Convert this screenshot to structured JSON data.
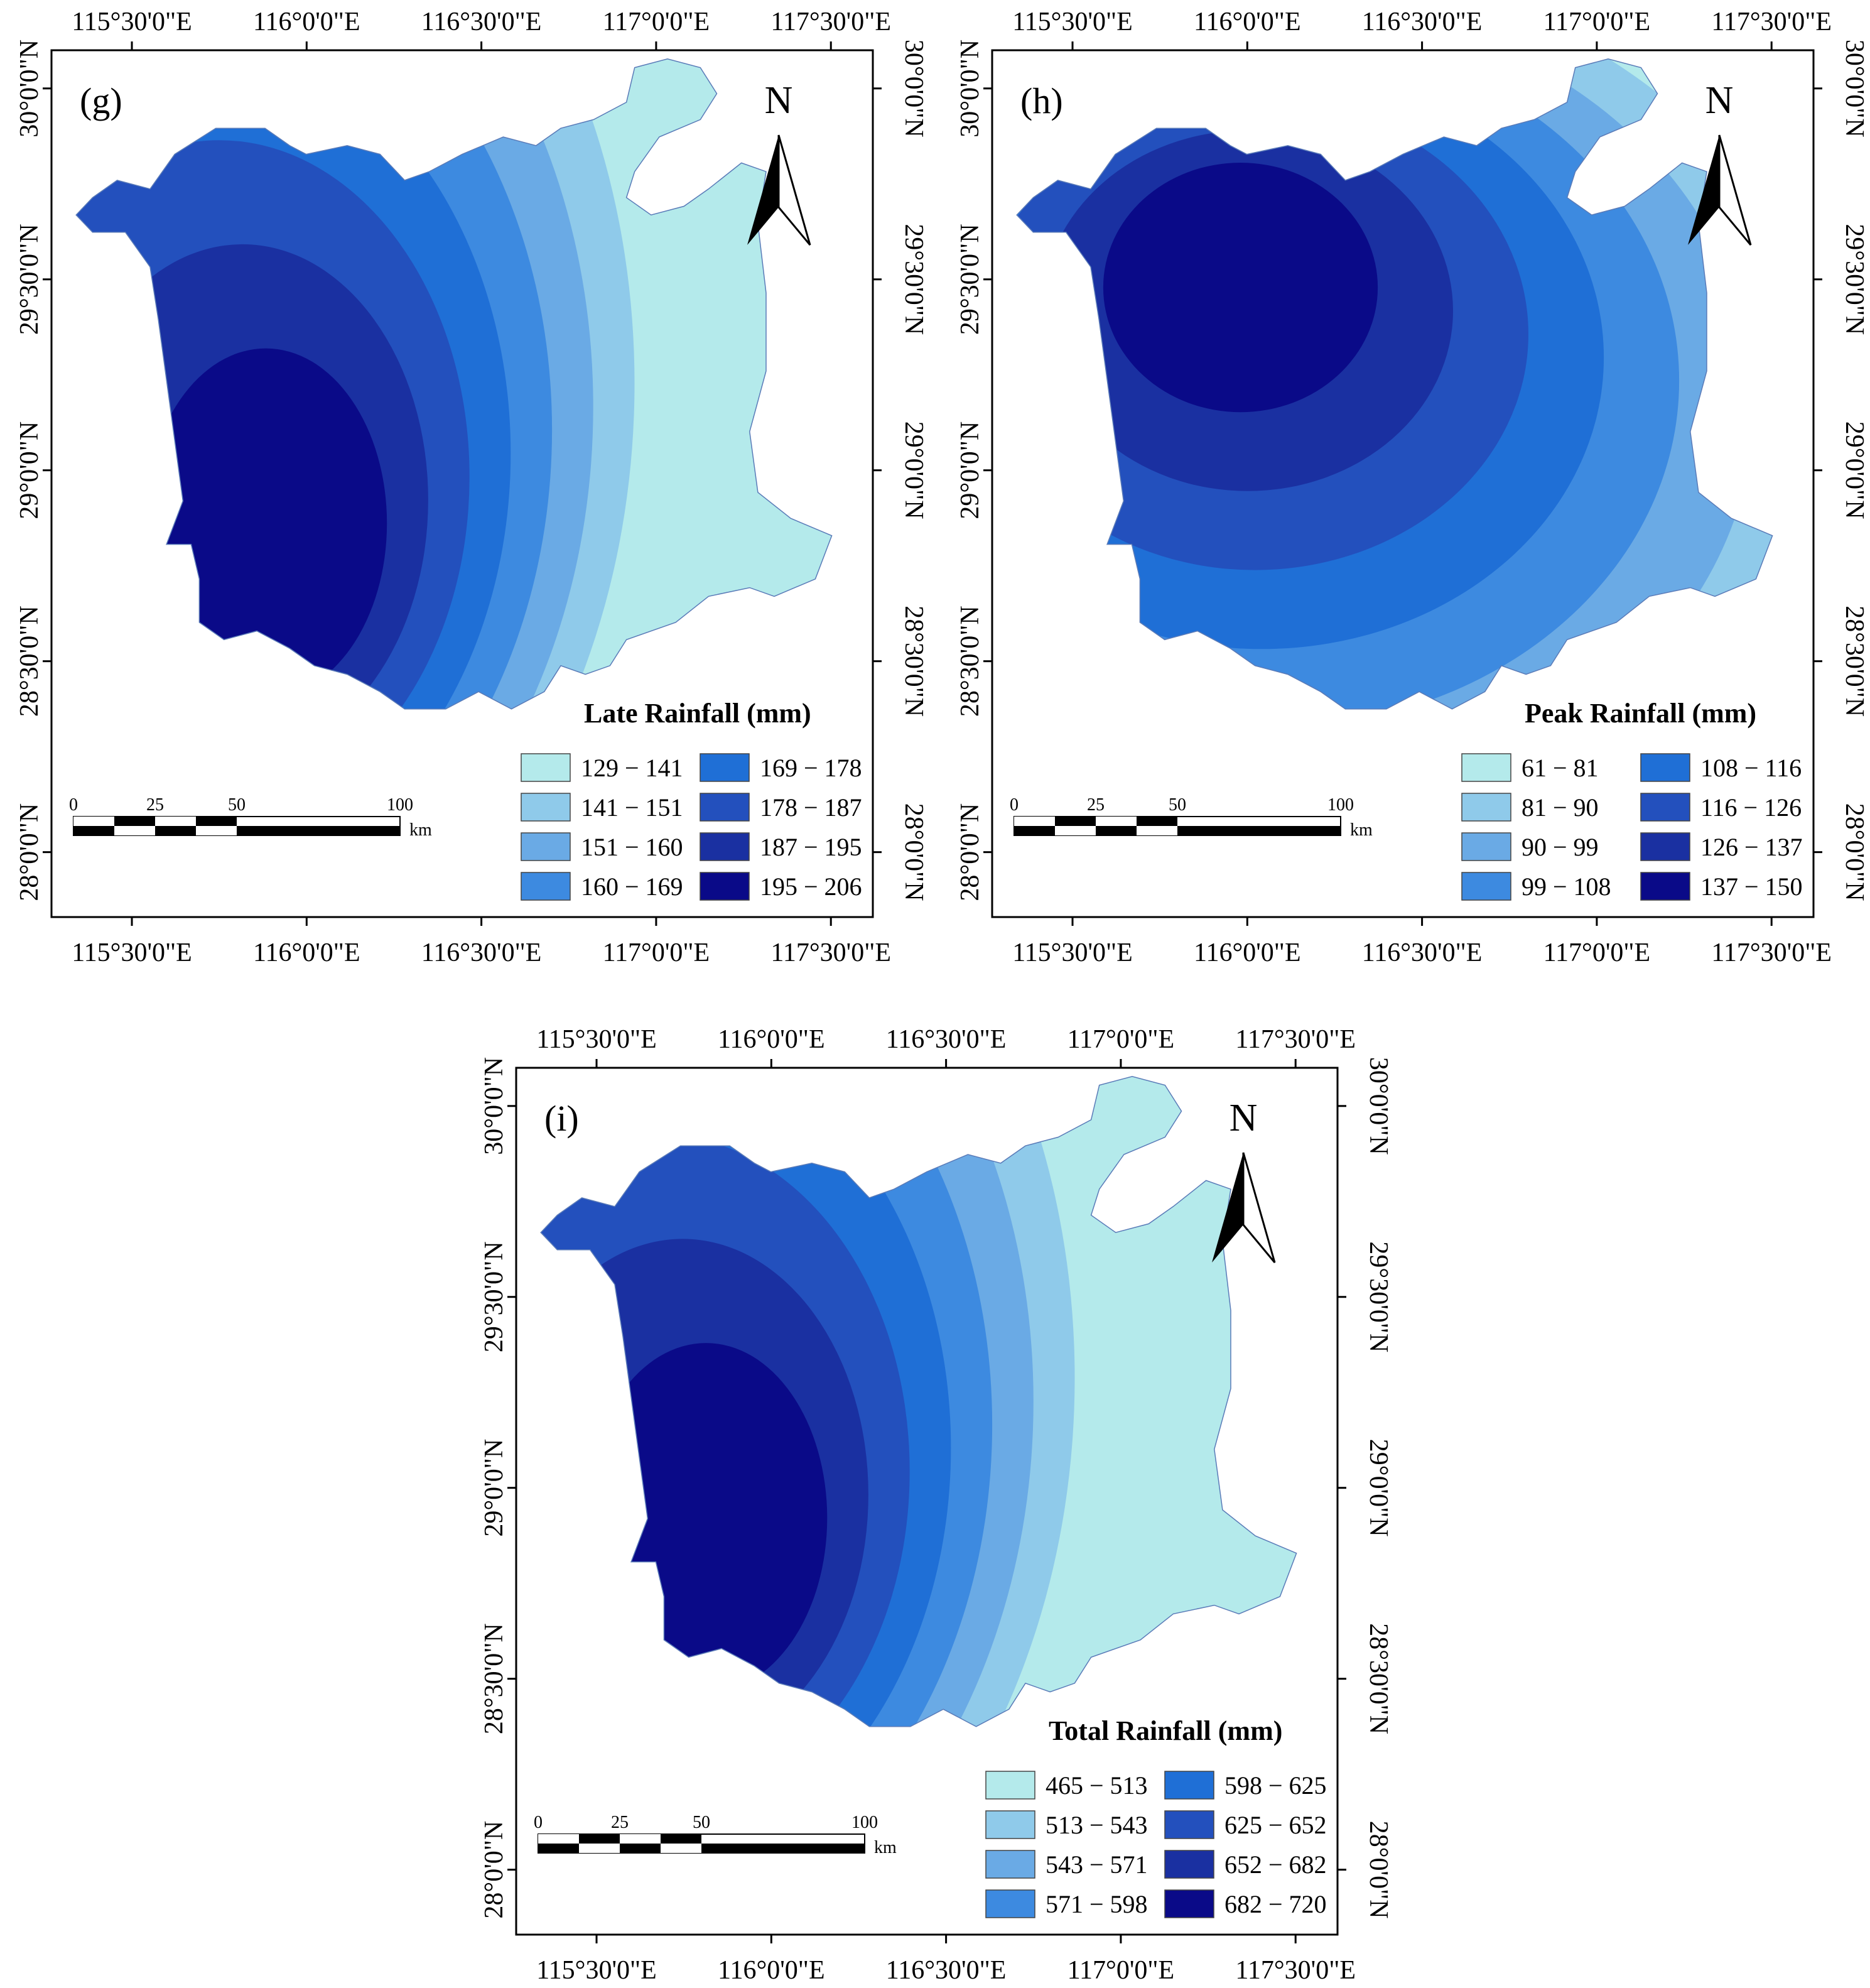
{
  "figure": {
    "panels": [
      {
        "id": "g",
        "panel_label": "(g)",
        "legend_title": "Late Rainfall (mm)",
        "classes": [
          "129 − 141",
          "141 − 151",
          "151 − 160",
          "160 − 169",
          "169 − 178",
          "178 − 187",
          "187 − 195",
          "195 − 206"
        ],
        "high_center_lon": 115.95,
        "high_center_lat": 28.8,
        "gradient": "west-east"
      },
      {
        "id": "h",
        "panel_label": "(h)",
        "legend_title": "Peak Rainfall (mm)",
        "classes": [
          "61 − 81",
          "81 − 90",
          "90 − 99",
          "99 − 108",
          "108 − 116",
          "116 − 126",
          "126 − 137",
          "137 − 150"
        ],
        "high_center_lon": 115.96,
        "high_center_lat": 29.54,
        "gradient": "north-south"
      },
      {
        "id": "i",
        "panel_label": "(i)",
        "legend_title": "Total Rainfall (mm)",
        "classes": [
          "465 − 513",
          "513 − 543",
          "543 − 571",
          "571 − 598",
          "598 − 625",
          "625 − 652",
          "652 − 682",
          "682 − 720"
        ],
        "high_center_lon": 115.88,
        "high_center_lat": 28.86,
        "gradient": "west-east"
      }
    ],
    "top_lon_labels": [
      "115°30'0\"E",
      "116°0'0\"E",
      "116°30'0\"E",
      "117°0'0\"E",
      "117°30'0\"E"
    ],
    "bottom_lon_labels": [
      "115°30'0\"E",
      "116°0'0\"E",
      "116°30'0\"E",
      "117°0'0\"E",
      "117°30'0\"E"
    ],
    "lat_labels": [
      "30°0'0\"N",
      "29°30'0\"N",
      "29°0'0\"N",
      "28°30'0\"N",
      "28°0'0\"N"
    ],
    "north_arrow_label": "N",
    "scale_bar": {
      "ticks": [
        "0",
        "25",
        "50",
        "100"
      ],
      "unit": "km"
    },
    "colors": [
      "#b4eaeb",
      "#8fcaea",
      "#6aaae5",
      "#3d8ae0",
      "#1f6fd6",
      "#2350bd",
      "#1a30a1",
      "#0a0a88"
    ],
    "frame_color": "#000000"
  }
}
